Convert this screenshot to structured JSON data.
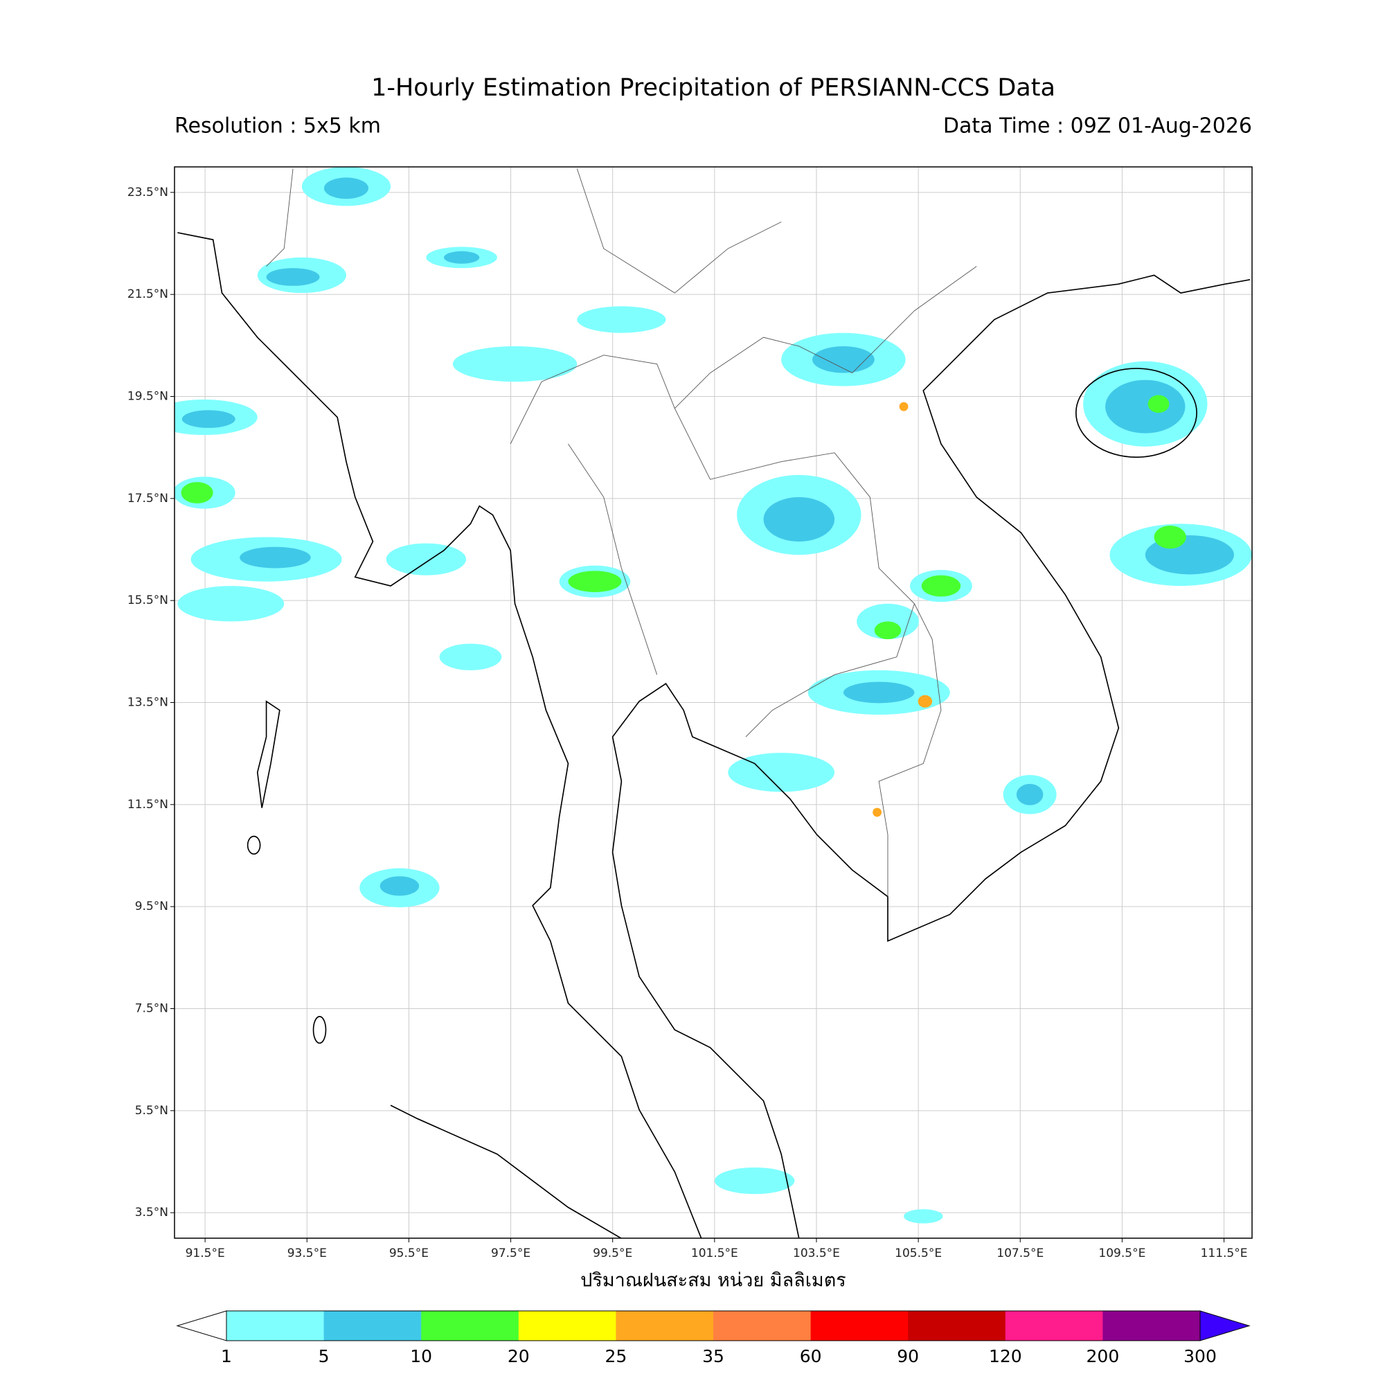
{
  "title": "1-Hourly Estimation Precipitation of PERSIANN-CCS Data",
  "resolution": "Resolution : 5x5 km",
  "data_time": "Data Time : 09Z 01-Aug-2026",
  "x_label": "ปริมาณฝนสะสม หน่วย มิลลิเมตร",
  "map": {
    "xlim": [
      90.9,
      112.05
    ],
    "ylim": [
      3.0,
      24.0
    ],
    "grid": true,
    "xticks": [
      {
        "value": 91.5,
        "label": "91.5°E"
      },
      {
        "value": 93.5,
        "label": "93.5°E"
      },
      {
        "value": 95.5,
        "label": "95.5°E"
      },
      {
        "value": 97.5,
        "label": "97.5°E"
      },
      {
        "value": 99.5,
        "label": "99.5°E"
      },
      {
        "value": 101.5,
        "label": "101.5°E"
      },
      {
        "value": 103.5,
        "label": "103.5°E"
      },
      {
        "value": 105.5,
        "label": "105.5°E"
      },
      {
        "value": 107.5,
        "label": "107.5°E"
      },
      {
        "value": 109.5,
        "label": "109.5°E"
      },
      {
        "value": 111.5,
        "label": "111.5°E"
      }
    ],
    "yticks": [
      {
        "value": 23.5,
        "label": "23.5°N"
      },
      {
        "value": 21.5,
        "label": "21.5°N"
      },
      {
        "value": 19.5,
        "label": "19.5°N"
      },
      {
        "value": 17.5,
        "label": "17.5°N"
      },
      {
        "value": 15.5,
        "label": "15.5°N"
      },
      {
        "value": 13.5,
        "label": "13.5°N"
      },
      {
        "value": 11.5,
        "label": "11.5°N"
      },
      {
        "value": 9.5,
        "label": "9.5°N"
      },
      {
        "value": 7.5,
        "label": "7.5°N"
      },
      {
        "value": 5.5,
        "label": "5.5°N"
      },
      {
        "value": 3.5,
        "label": "3.5°N"
      }
    ]
  },
  "colorbar": {
    "levels": [
      1,
      5,
      10,
      20,
      25,
      35,
      60,
      90,
      120,
      200,
      300
    ],
    "colors": [
      "#80ffff",
      "#40c8e8",
      "#48ff30",
      "#ffff00",
      "#ffa820",
      "#ff8040",
      "#ff0000",
      "#c80000",
      "#ff1c8c",
      "#8c008c"
    ],
    "under_color": "#ffffff",
    "over_color": "#3c00ff"
  }
}
